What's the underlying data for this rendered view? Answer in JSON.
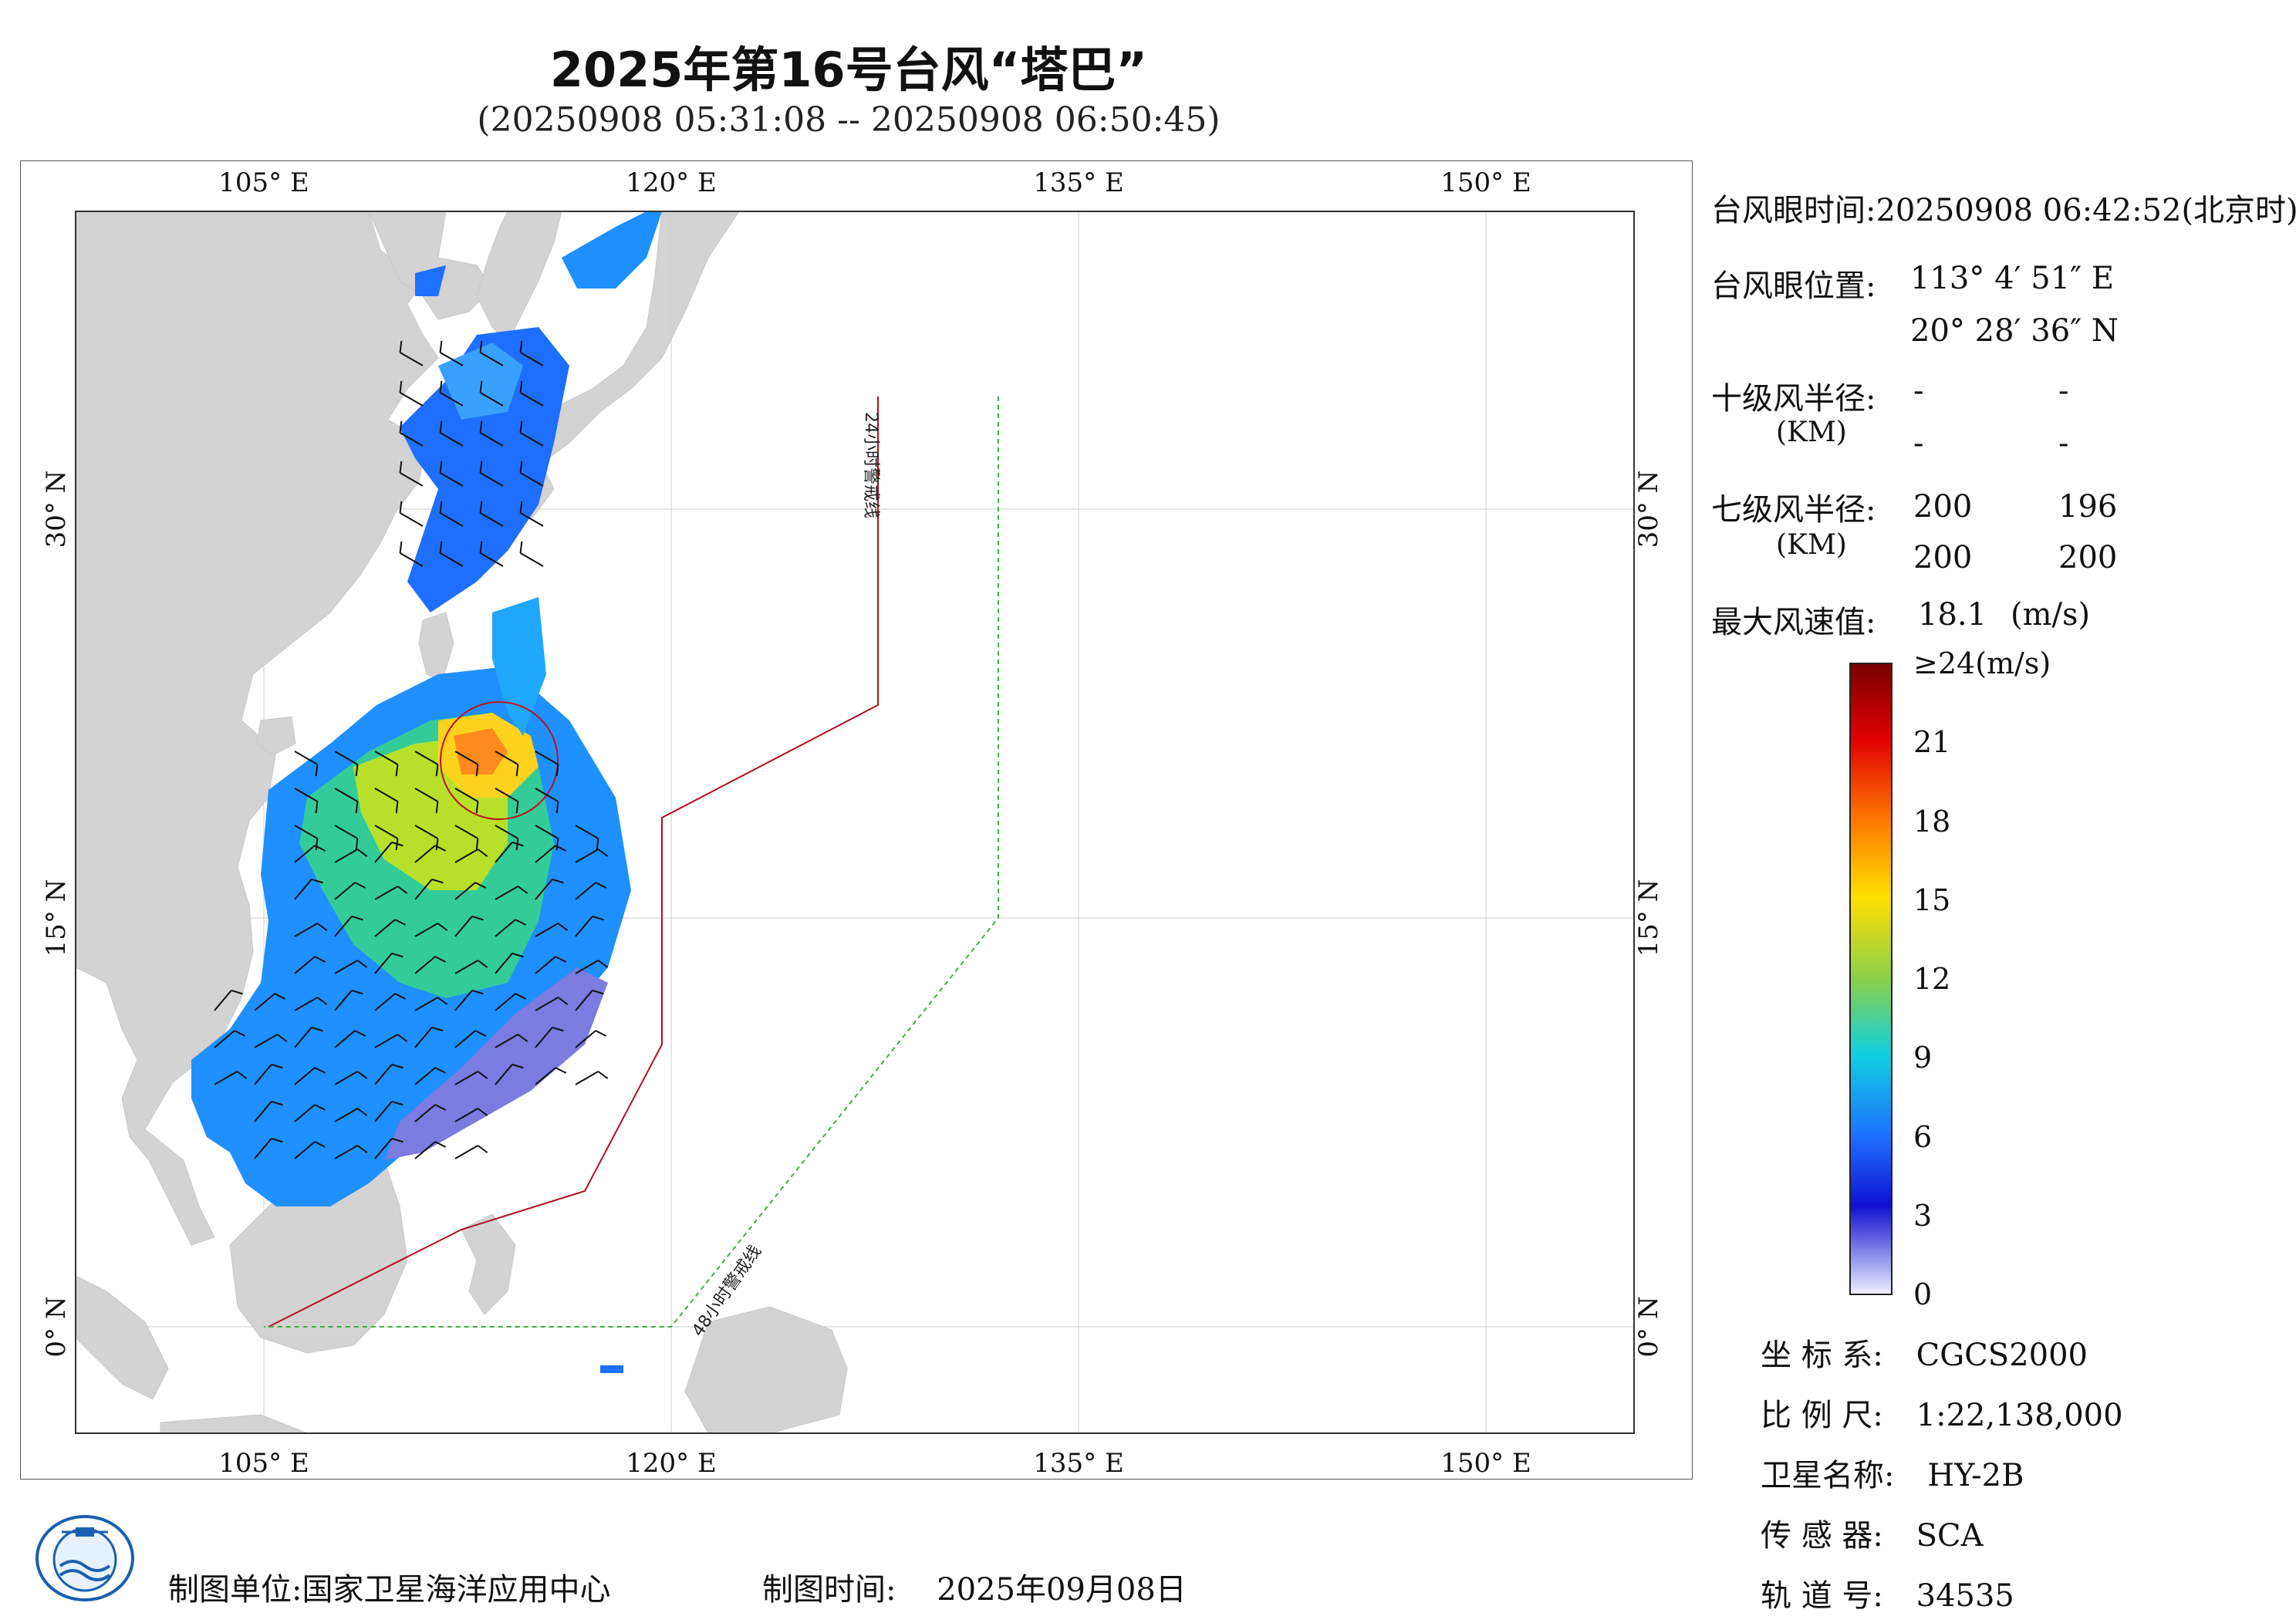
{
  "title": "2025年第16号台风“塔巴”",
  "subtitle": "(20250908 05:31:08 -- 20250908 06:50:45)",
  "map": {
    "lon_labels": [
      "105° E",
      "120° E",
      "135° E",
      "150° E"
    ],
    "lat_labels": [
      "0° N",
      "15° N",
      "30° N"
    ],
    "warning_24h": "24小时警戒线",
    "warning_48h": "48小时警戒线",
    "colors": {
      "land": "#d3d3d3",
      "ocean": "#ffffff",
      "warn24": "#b01020",
      "warn48": "#40b040"
    }
  },
  "info": {
    "eye_time_label": "台风眼时间:",
    "eye_time_value": "20250908 06:42:52(北京时)",
    "eye_pos_label": "台风眼位置:",
    "eye_lon": "113° 4′ 51″ E",
    "eye_lat": "20° 28′ 36″ N",
    "r10_label": "十级风半径:",
    "r10_unit": "(KM)",
    "r10_values": [
      "-",
      "-",
      "-",
      "-"
    ],
    "r7_label": "七级风半径:",
    "r7_unit": "(KM)",
    "r7_values": [
      "200",
      "196",
      "200",
      "200"
    ],
    "max_wind_label": "最大风速值:",
    "max_wind_value": "18.1",
    "max_wind_unit": "(m/s)"
  },
  "colorbar": {
    "labels": [
      "≥24(m/s)",
      "21",
      "18",
      "15",
      "12",
      "9",
      "6",
      "3",
      "0"
    ],
    "values": [
      24,
      21,
      18,
      15,
      12,
      9,
      6,
      3,
      0
    ]
  },
  "meta": {
    "crs_label": "坐 标 系:",
    "crs_value": "CGCS2000",
    "scale_label": "比 例 尺:",
    "scale_value": "1:22,138,000",
    "satellite_label": "卫星名称:",
    "satellite_value": "HY-2B",
    "sensor_label": "传 感 器:",
    "sensor_value": "SCA",
    "orbit_label": "轨 道 号:",
    "orbit_value": "34535"
  },
  "footer": {
    "producer_label": "制图单位:",
    "producer_value": "国家卫星海洋应用中心",
    "date_label": "制图时间:",
    "date_value": "2025年09月08日"
  }
}
